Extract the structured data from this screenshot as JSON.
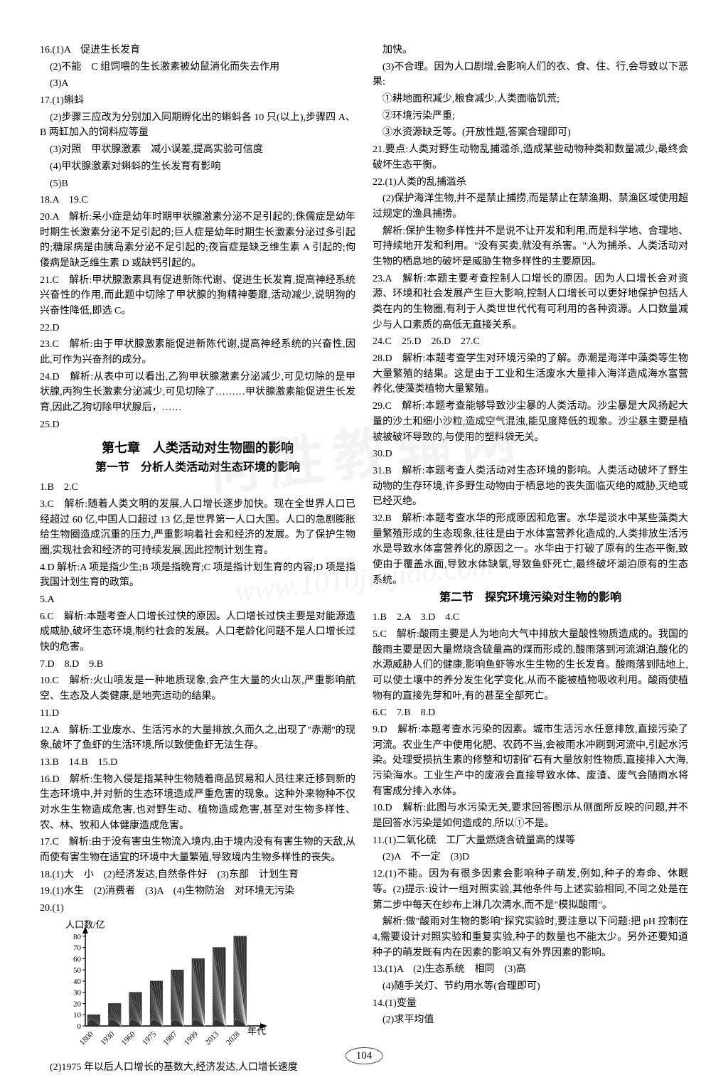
{
  "page_number": "104",
  "watermark_text": "何胜教辅网",
  "watermark_url": "www.1010jiajiao.com",
  "left": [
    "16.(1)A　促进生长发育",
    "　(2)不能　C 组饲喂的生长激素被幼鼠消化而失去作用",
    "　(3)A",
    "17.(1)蝌蚪",
    "　(2)步骤三应改为分别加入同期孵化出的蝌蚪各 10 只(以上),步骤四 A、B 两缸加入的饲料应等量",
    "　(3)对照　甲状腺激素　减小误差,提高实验可信度",
    "　(4)甲状腺激素对蝌蚪的生长发育有影响",
    "　(5)B",
    "18.A　19.C",
    "20.A　解析:呆小症是幼年时期甲状腺激素分泌不足引起的;侏儒症是幼年时期生长激素分泌不足引起的;巨人症是幼年时期生长激素分泌过多引起的;糖尿病是由胰岛素分泌不足引起的;夜盲症是缺乏维生素 A 引起的;佝偻病是缺乏维生素 D 或缺钙引起的。",
    "21.C　解析:甲状腺激素具有促进新陈代谢、促进生长发育,提高神经系统兴奋性的作用,而此题中切除了甲状腺的狗精神萎靡,活动减少,说明狗的兴奋性降低,即选 C。",
    "22.D",
    "23.C　解析:由于甲状腺激素能促进新陈代谢,提高神经系统的兴奋性,因此,可作为兴奋剂的成分。",
    "24.D　解析:从表中可以看出,乙狗甲状腺激素分泌减少,可见切除的是甲状腺,丙狗生长激素分泌减少,可见切除了………甲状腺激素能促进生长发育,因此乙狗切除甲状腺后，……",
    "25.D"
  ],
  "chapter": "第七章　人类活动对生物圈的影响",
  "section1": "第一节　分析人类活动对生态环境的影响",
  "left2": [
    "1.B　2.C",
    "3.C　解析:随着人类文明的发展,人口增长逐步加快。现在全世界人口已经超过 60 亿,中国人口超过 13 亿,是世界第一人口大国。人口的急剧膨胀给生物圈造成沉重的压力,严重影响着社会和经济的发展。为了保护生物圈,实现社会和经济的可持续发展,因此控制计划生育。",
    "4.D 解析:A 项是指少生;B 项是指晚育;C 项是指计划生育的内容;D 项是指我国计划生育的政策。",
    "5.A",
    "6.C　解析:本题考查人口增长过快的原因。人口增长过快主要是对能源造成威胁,破坏生态环境,制约社会的发展。人口老龄化问题不是人口增长过快的危害。",
    "7.D　8.D　9.B",
    "10.C　解析:火山喷发是一种地质现象,会产生大量的火山灰,严重影响航空、生态及人类健康,是地壳运动的结果。",
    "11.D",
    "12.A　解析:工业废水、生活污水的大量排放,久而久之,出现了\"赤潮\"的现象,破坏了鱼虾的生活环境,所以致使鱼虾无法生存。",
    "13.B　14.B　15.D",
    "16.D　解析:生物入侵是指某种生物随着商品贸易和人员往来迁移到新的生态环境中,并对新的生态环境造成严重危害的现象。这种外来物种不仅对水生生物造成危害,也对野生动、植物造成危害,甚至对生物多样性、农、林、牧和人体健康造成危害。",
    "17.C　解析:由于没有害虫生物流入境内,由于境内没有有害生物的天敌,从而使有害生物在适宜的环境中大量繁殖,导致境内生物多样性的丧失。",
    "18.(1)大　小　(2)经济发达,自然条件好　(3)东部　计划生育",
    "19.(1)水生　(2)消费者　(3)A　(4)生物防治　对环境无污染",
    "20.(1)"
  ],
  "chart": {
    "ylabel": "人口数/亿",
    "xlabel": "年代",
    "x_ticks": [
      "1800",
      "1930",
      "1960",
      "1975",
      "1987",
      "1999",
      "2013",
      "2028"
    ],
    "y_ticks": [
      0,
      10,
      20,
      30,
      40,
      50,
      60,
      70,
      80
    ],
    "values": [
      10,
      20,
      30,
      40,
      50,
      60,
      70,
      80
    ],
    "bar_fill": "#333333",
    "axis_color": "#000000",
    "font_size": 11,
    "ylim": [
      0,
      85
    ],
    "bar_width": 0.6
  },
  "left3": [
    "　(2)1975 年以后人口增长的基数大,经济发达,人口增长速度"
  ],
  "right": [
    "　加快。",
    "　(3)不合理。因为人口剧增,会影响人们的衣、食、住、行,会导致以下恶果:",
    "　①耕地面积减少,粮食减少,人类面临饥荒;",
    "　②环境污染严重;",
    "　③水资源缺乏等。(开放性题,答案合理即可)",
    "21.要点:人类对野生动物乱捕滥杀,造成某些动物种类和数量减少,最终会破坏生态平衡。",
    "22.(1)人类的乱捕滥杀",
    "　(2)保护海洋生物,并不是禁止捕捞,而是禁止在禁渔期、禁渔区域使用超过规定的渔具捕捞。",
    "　解析:保护生物多样性并不是说不让开发和利用,而是科学地、合理地、可持续地开发和利用。\"没有买卖,就没有杀害。\"人为捕杀、人类活动对生物的栖息地的破坏是威胁生物多样性的主要原因。",
    "23.A　解析:本题主要考查控制人口增长的原因。因为人口增长会对资源、环境和社会发展产生巨大影响,控制人口增长可以更好地保护包括人类在内的生物圈,有利于人类世世代代有可利用的各种资源。人口数量减少与人口素质的高低无直接关系。",
    "24.C　25.D　26.D　27.C",
    "28.D　解析:本题考查学生对环境污染的了解。赤潮是海洋中藻类等生物大量繁殖的结果。这是由于工业和生活废水大量排入海洋造成海水富营养化,使藻类植物大量繁殖。",
    "29.C　解析:本题考查能够导致沙尘暴的人类活动。沙尘暴是大风扬起大量的沙土和细小沙粒,造成空气混浊,能见度降低的现象。沙尘暴主要是植被被破坏导致的,与使用的塑料袋无关。",
    "30.D",
    "31.B　解析:本题考查人类活动对生态环境的影响。人类活动破坏了野生动物的生存环境,许多野生动物由于栖息地的丧失面临灭绝的威胁,灭绝或已经灭绝。",
    "32.B　解析:本题考查水华的形成原因和危害。水华是淡水中某些藻类大量繁殖形成的生态现象,往往是由于水体富营养化造成的,人类排放生活污水是导致水体富营养化的原因之一。水华由于打破了原有的生态平衡,致使由于覆盖水面,导致水体缺氧,导致鱼虾死亡,最终破坏湖泊原有的生态系统。"
  ],
  "section2": "第二节　探究环境污染对生物的影响",
  "right2": [
    "1.B　2.A　3.D　4.C",
    "5.C　解析:酸雨主要是人为地向大气中排放大量酸性物质造成的。我国的酸雨主要是因大量燃烧含硫量高的煤而形成的,酸雨落到河流湖泊,酸化的水源威胁人们的健康,影响鱼虾等水生生物的生长发育。酸雨落到陆地上,可以使土壤中的养分发生化学变化,从而不能被植物吸收利用。酸雨使植物有的直接先芽和叶,有的甚至全部死亡。",
    "6.C　7.B　8.D",
    "9.D　解析:本题考查水污染的因素。城市生活污水任意排放,直接污染了河流。农业生产中使用化肥、农药不当,会被雨水冲刷到河流中,引起水污染。处理受损抗生素的修整和切割矿石有大量放射性物质,直接排入大海,污染海水。工业生产中的废液会直接导致水体、废渣、废气会随雨水将有害成分排入水体。",
    "10.D　解析:此图与水污染无关,要求回答图示从侧面所反映的问题,并不是回答水污染是如何造成的,所以①不是。",
    "11.(1)二氧化硫　工厂大量燃烧含硫量高的煤等",
    "　(2)A　不一定　(3)D",
    "12.(1)不能。因为有很多因素会影响种子萌发,例如,种子的寿命、休眠等。(2)提示:设计一组对照实验,其他条件与上述实验相同,不同之处是在第二步中每天在纱布上淋几次清水,而不是\"模拟酸雨\"。",
    "　解析:做\"酸雨对生物的影响\"探究实验时,要注意以下问题:把 pH 控制在 4,需要设计对照实验和重复实验,种子的数量也不能太少。另外还要知道种子的萌发既有内在因素的影响又有外界因素的影响。",
    "13.(1)A　(2)生态系统　相同　(3)高",
    "　(4)随手关灯、节约用水等(合理即可)",
    "14.(1)变量",
    "　(2)求平均值"
  ]
}
